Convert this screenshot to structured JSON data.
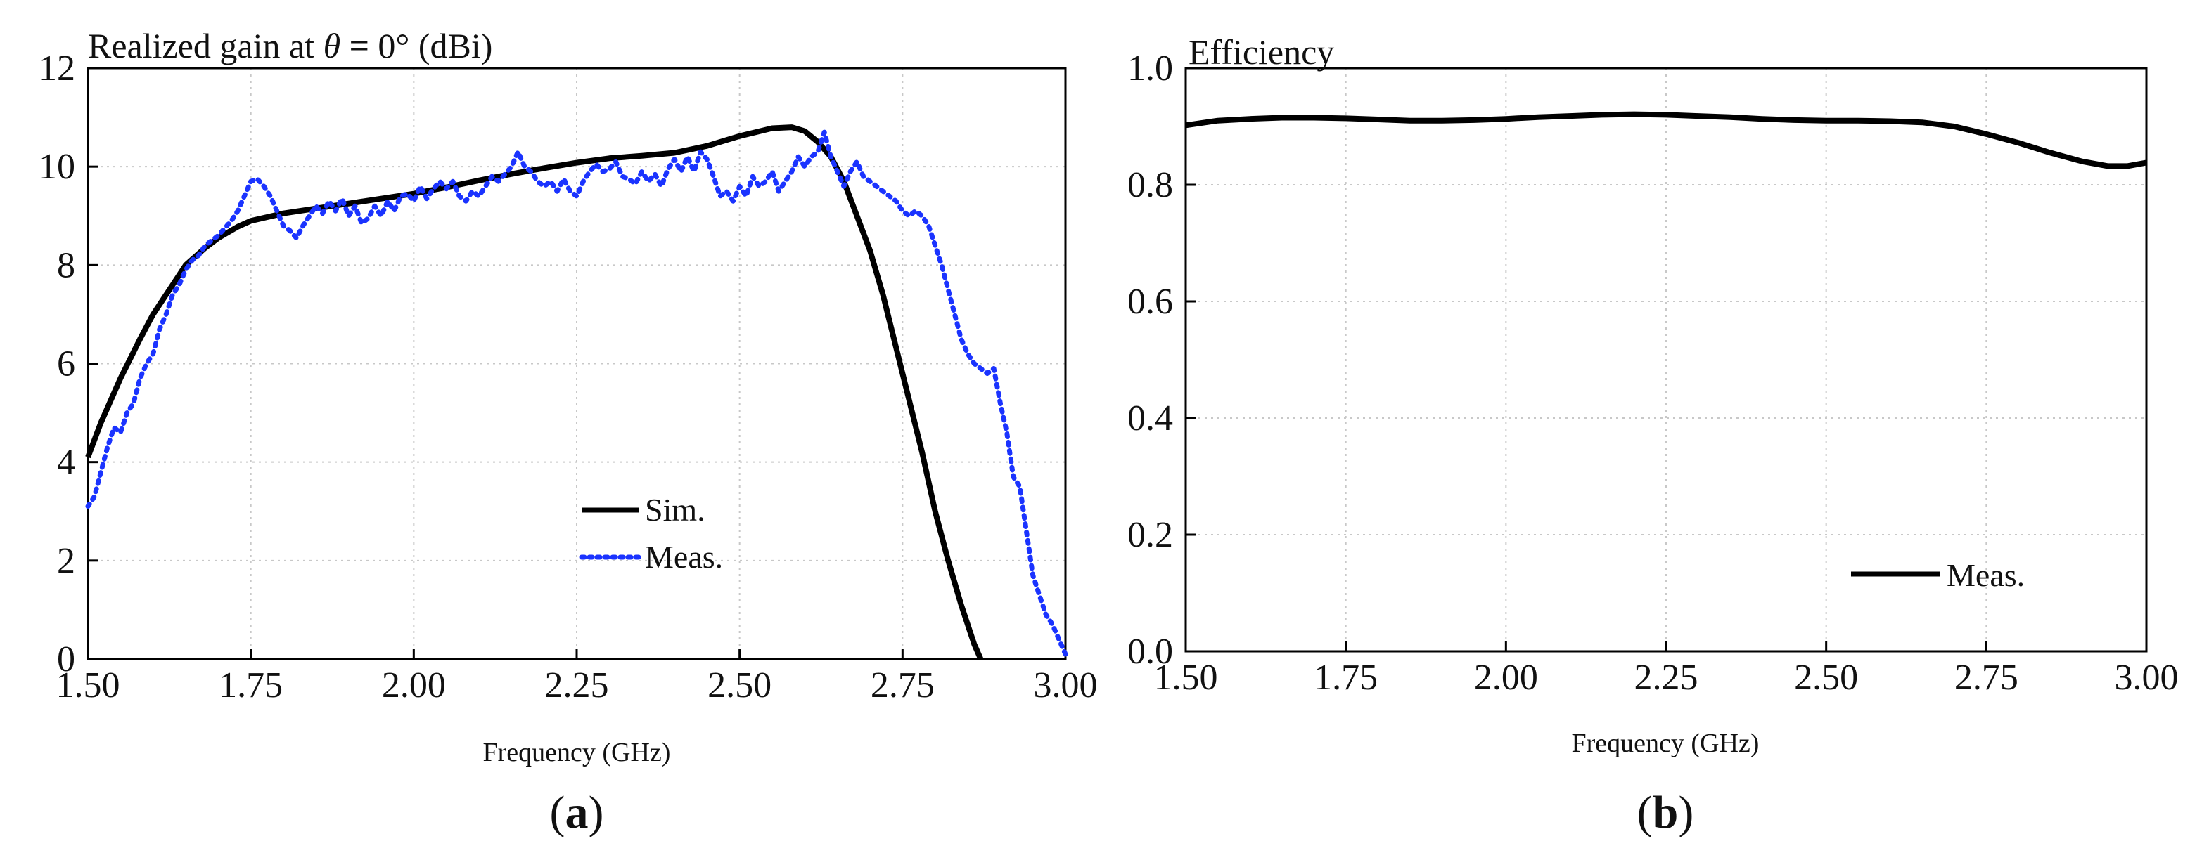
{
  "chart_data": [
    {
      "type": "line",
      "panel_label": "a",
      "title": "Realized gain at θ = 0° (dBi)",
      "title_parts": {
        "prefix": "Realized gain at ",
        "symbol": "θ",
        "suffix": " = 0° (dBi)"
      },
      "xlabel": "Frequency (GHz)",
      "ylabel": "",
      "xlim": [
        1.5,
        3.0
      ],
      "ylim": [
        0,
        12
      ],
      "xticks": [
        "1.50",
        "1.75",
        "2.00",
        "2.25",
        "2.50",
        "2.75",
        "3.00"
      ],
      "yticks": [
        "0",
        "2",
        "4",
        "6",
        "8",
        "10",
        "12"
      ],
      "grid": true,
      "legend": {
        "position": "bottom-right",
        "entries": [
          "Sim.",
          "Meas."
        ]
      },
      "series": [
        {
          "name": "Sim.",
          "style": "solid",
          "color": "#000000",
          "points": [
            [
              1.5,
              4.1
            ],
            [
              1.52,
              4.8
            ],
            [
              1.55,
              5.7
            ],
            [
              1.58,
              6.5
            ],
            [
              1.6,
              7.0
            ],
            [
              1.63,
              7.6
            ],
            [
              1.65,
              8.0
            ],
            [
              1.68,
              8.35
            ],
            [
              1.7,
              8.55
            ],
            [
              1.73,
              8.78
            ],
            [
              1.75,
              8.9
            ],
            [
              1.8,
              9.05
            ],
            [
              1.85,
              9.15
            ],
            [
              1.9,
              9.25
            ],
            [
              1.95,
              9.35
            ],
            [
              2.0,
              9.45
            ],
            [
              2.05,
              9.58
            ],
            [
              2.1,
              9.72
            ],
            [
              2.15,
              9.85
            ],
            [
              2.2,
              9.97
            ],
            [
              2.25,
              10.08
            ],
            [
              2.3,
              10.17
            ],
            [
              2.35,
              10.22
            ],
            [
              2.4,
              10.28
            ],
            [
              2.45,
              10.42
            ],
            [
              2.5,
              10.62
            ],
            [
              2.55,
              10.78
            ],
            [
              2.58,
              10.8
            ],
            [
              2.6,
              10.72
            ],
            [
              2.62,
              10.5
            ],
            [
              2.64,
              10.2
            ],
            [
              2.66,
              9.7
            ],
            [
              2.68,
              9.0
            ],
            [
              2.7,
              8.3
            ],
            [
              2.72,
              7.4
            ],
            [
              2.75,
              5.8
            ],
            [
              2.78,
              4.2
            ],
            [
              2.8,
              3.0
            ],
            [
              2.82,
              2.0
            ],
            [
              2.84,
              1.1
            ],
            [
              2.86,
              0.3
            ],
            [
              2.87,
              0.0
            ]
          ]
        },
        {
          "name": "Meas.",
          "style": "dotted",
          "color": "#1a33ff",
          "points": [
            [
              1.5,
              3.1
            ],
            [
              1.51,
              3.3
            ],
            [
              1.52,
              3.8
            ],
            [
              1.53,
              4.3
            ],
            [
              1.54,
              4.7
            ],
            [
              1.55,
              4.6
            ],
            [
              1.56,
              5.0
            ],
            [
              1.57,
              5.2
            ],
            [
              1.58,
              5.7
            ],
            [
              1.59,
              6.0
            ],
            [
              1.6,
              6.2
            ],
            [
              1.61,
              6.7
            ],
            [
              1.62,
              7.0
            ],
            [
              1.63,
              7.4
            ],
            [
              1.64,
              7.6
            ],
            [
              1.65,
              7.9
            ],
            [
              1.66,
              8.1
            ],
            [
              1.67,
              8.2
            ],
            [
              1.68,
              8.4
            ],
            [
              1.69,
              8.5
            ],
            [
              1.7,
              8.6
            ],
            [
              1.71,
              8.75
            ],
            [
              1.72,
              8.9
            ],
            [
              1.73,
              9.1
            ],
            [
              1.74,
              9.4
            ],
            [
              1.75,
              9.7
            ],
            [
              1.76,
              9.75
            ],
            [
              1.77,
              9.6
            ],
            [
              1.78,
              9.4
            ],
            [
              1.79,
              9.1
            ],
            [
              1.8,
              8.8
            ],
            [
              1.81,
              8.7
            ],
            [
              1.82,
              8.55
            ],
            [
              1.83,
              8.8
            ],
            [
              1.84,
              9.0
            ],
            [
              1.85,
              9.2
            ],
            [
              1.86,
              9.05
            ],
            [
              1.87,
              9.3
            ],
            [
              1.88,
              9.1
            ],
            [
              1.89,
              9.35
            ],
            [
              1.9,
              9.0
            ],
            [
              1.91,
              9.2
            ],
            [
              1.92,
              8.85
            ],
            [
              1.93,
              8.95
            ],
            [
              1.94,
              9.2
            ],
            [
              1.95,
              9.0
            ],
            [
              1.96,
              9.3
            ],
            [
              1.97,
              9.1
            ],
            [
              1.98,
              9.4
            ],
            [
              1.99,
              9.45
            ],
            [
              2.0,
              9.3
            ],
            [
              2.01,
              9.6
            ],
            [
              2.02,
              9.35
            ],
            [
              2.03,
              9.55
            ],
            [
              2.04,
              9.7
            ],
            [
              2.05,
              9.55
            ],
            [
              2.06,
              9.7
            ],
            [
              2.07,
              9.4
            ],
            [
              2.08,
              9.3
            ],
            [
              2.09,
              9.5
            ],
            [
              2.1,
              9.4
            ],
            [
              2.11,
              9.6
            ],
            [
              2.12,
              9.8
            ],
            [
              2.13,
              9.7
            ],
            [
              2.14,
              9.85
            ],
            [
              2.15,
              10.0
            ],
            [
              2.16,
              10.3
            ],
            [
              2.17,
              10.0
            ],
            [
              2.18,
              9.9
            ],
            [
              2.19,
              9.7
            ],
            [
              2.2,
              9.6
            ],
            [
              2.21,
              9.7
            ],
            [
              2.22,
              9.5
            ],
            [
              2.23,
              9.75
            ],
            [
              2.24,
              9.5
            ],
            [
              2.25,
              9.4
            ],
            [
              2.26,
              9.7
            ],
            [
              2.27,
              9.9
            ],
            [
              2.28,
              10.05
            ],
            [
              2.29,
              9.9
            ],
            [
              2.3,
              9.95
            ],
            [
              2.31,
              10.1
            ],
            [
              2.32,
              9.8
            ],
            [
              2.33,
              9.75
            ],
            [
              2.34,
              9.65
            ],
            [
              2.35,
              9.9
            ],
            [
              2.36,
              9.7
            ],
            [
              2.37,
              9.85
            ],
            [
              2.38,
              9.6
            ],
            [
              2.39,
              9.95
            ],
            [
              2.4,
              10.15
            ],
            [
              2.41,
              9.9
            ],
            [
              2.42,
              10.2
            ],
            [
              2.43,
              9.9
            ],
            [
              2.44,
              10.3
            ],
            [
              2.45,
              10.15
            ],
            [
              2.46,
              9.8
            ],
            [
              2.47,
              9.4
            ],
            [
              2.48,
              9.5
            ],
            [
              2.49,
              9.3
            ],
            [
              2.5,
              9.6
            ],
            [
              2.51,
              9.4
            ],
            [
              2.52,
              9.8
            ],
            [
              2.53,
              9.6
            ],
            [
              2.54,
              9.7
            ],
            [
              2.55,
              9.9
            ],
            [
              2.56,
              9.5
            ],
            [
              2.57,
              9.7
            ],
            [
              2.58,
              9.9
            ],
            [
              2.59,
              10.2
            ],
            [
              2.6,
              10.0
            ],
            [
              2.61,
              10.2
            ],
            [
              2.62,
              10.3
            ],
            [
              2.63,
              10.7
            ],
            [
              2.64,
              10.2
            ],
            [
              2.65,
              9.9
            ],
            [
              2.66,
              9.6
            ],
            [
              2.67,
              9.9
            ],
            [
              2.68,
              10.1
            ],
            [
              2.69,
              9.8
            ],
            [
              2.7,
              9.7
            ],
            [
              2.71,
              9.6
            ],
            [
              2.72,
              9.5
            ],
            [
              2.73,
              9.4
            ],
            [
              2.74,
              9.3
            ],
            [
              2.75,
              9.1
            ],
            [
              2.76,
              9.0
            ],
            [
              2.77,
              9.1
            ],
            [
              2.78,
              9.0
            ],
            [
              2.79,
              8.8
            ],
            [
              2.8,
              8.4
            ],
            [
              2.81,
              8.0
            ],
            [
              2.82,
              7.5
            ],
            [
              2.83,
              7.0
            ],
            [
              2.84,
              6.5
            ],
            [
              2.85,
              6.2
            ],
            [
              2.86,
              6.0
            ],
            [
              2.87,
              5.9
            ],
            [
              2.88,
              5.8
            ],
            [
              2.89,
              5.9
            ],
            [
              2.9,
              5.2
            ],
            [
              2.91,
              4.6
            ],
            [
              2.92,
              3.7
            ],
            [
              2.93,
              3.5
            ],
            [
              2.94,
              2.6
            ],
            [
              2.95,
              1.7
            ],
            [
              2.96,
              1.3
            ],
            [
              2.97,
              0.9
            ],
            [
              2.98,
              0.7
            ],
            [
              2.99,
              0.4
            ],
            [
              3.0,
              0.1
            ]
          ]
        }
      ]
    },
    {
      "type": "line",
      "panel_label": "b",
      "title": "Efficiency",
      "xlabel": "Frequency (GHz)",
      "ylabel": "",
      "xlim": [
        1.5,
        3.0
      ],
      "ylim": [
        0,
        1.0
      ],
      "xticks": [
        "1.50",
        "1.75",
        "2.00",
        "2.25",
        "2.50",
        "2.75",
        "3.00"
      ],
      "yticks": [
        "0.0",
        "0.2",
        "0.4",
        "0.6",
        "0.8",
        "1.0"
      ],
      "grid": true,
      "legend": {
        "position": "bottom-right",
        "entries": [
          "Meas."
        ]
      },
      "series": [
        {
          "name": "Meas.",
          "style": "solid",
          "color": "#000000",
          "points": [
            [
              1.5,
              0.902
            ],
            [
              1.55,
              0.91
            ],
            [
              1.6,
              0.913
            ],
            [
              1.65,
              0.915
            ],
            [
              1.7,
              0.915
            ],
            [
              1.75,
              0.914
            ],
            [
              1.8,
              0.912
            ],
            [
              1.85,
              0.91
            ],
            [
              1.9,
              0.91
            ],
            [
              1.95,
              0.911
            ],
            [
              2.0,
              0.913
            ],
            [
              2.05,
              0.916
            ],
            [
              2.1,
              0.918
            ],
            [
              2.15,
              0.92
            ],
            [
              2.2,
              0.921
            ],
            [
              2.25,
              0.92
            ],
            [
              2.3,
              0.918
            ],
            [
              2.35,
              0.916
            ],
            [
              2.4,
              0.913
            ],
            [
              2.45,
              0.911
            ],
            [
              2.5,
              0.91
            ],
            [
              2.55,
              0.91
            ],
            [
              2.6,
              0.909
            ],
            [
              2.65,
              0.907
            ],
            [
              2.7,
              0.9
            ],
            [
              2.75,
              0.887
            ],
            [
              2.8,
              0.872
            ],
            [
              2.85,
              0.855
            ],
            [
              2.9,
              0.84
            ],
            [
              2.94,
              0.832
            ],
            [
              2.97,
              0.832
            ],
            [
              3.0,
              0.838
            ]
          ]
        }
      ]
    }
  ]
}
